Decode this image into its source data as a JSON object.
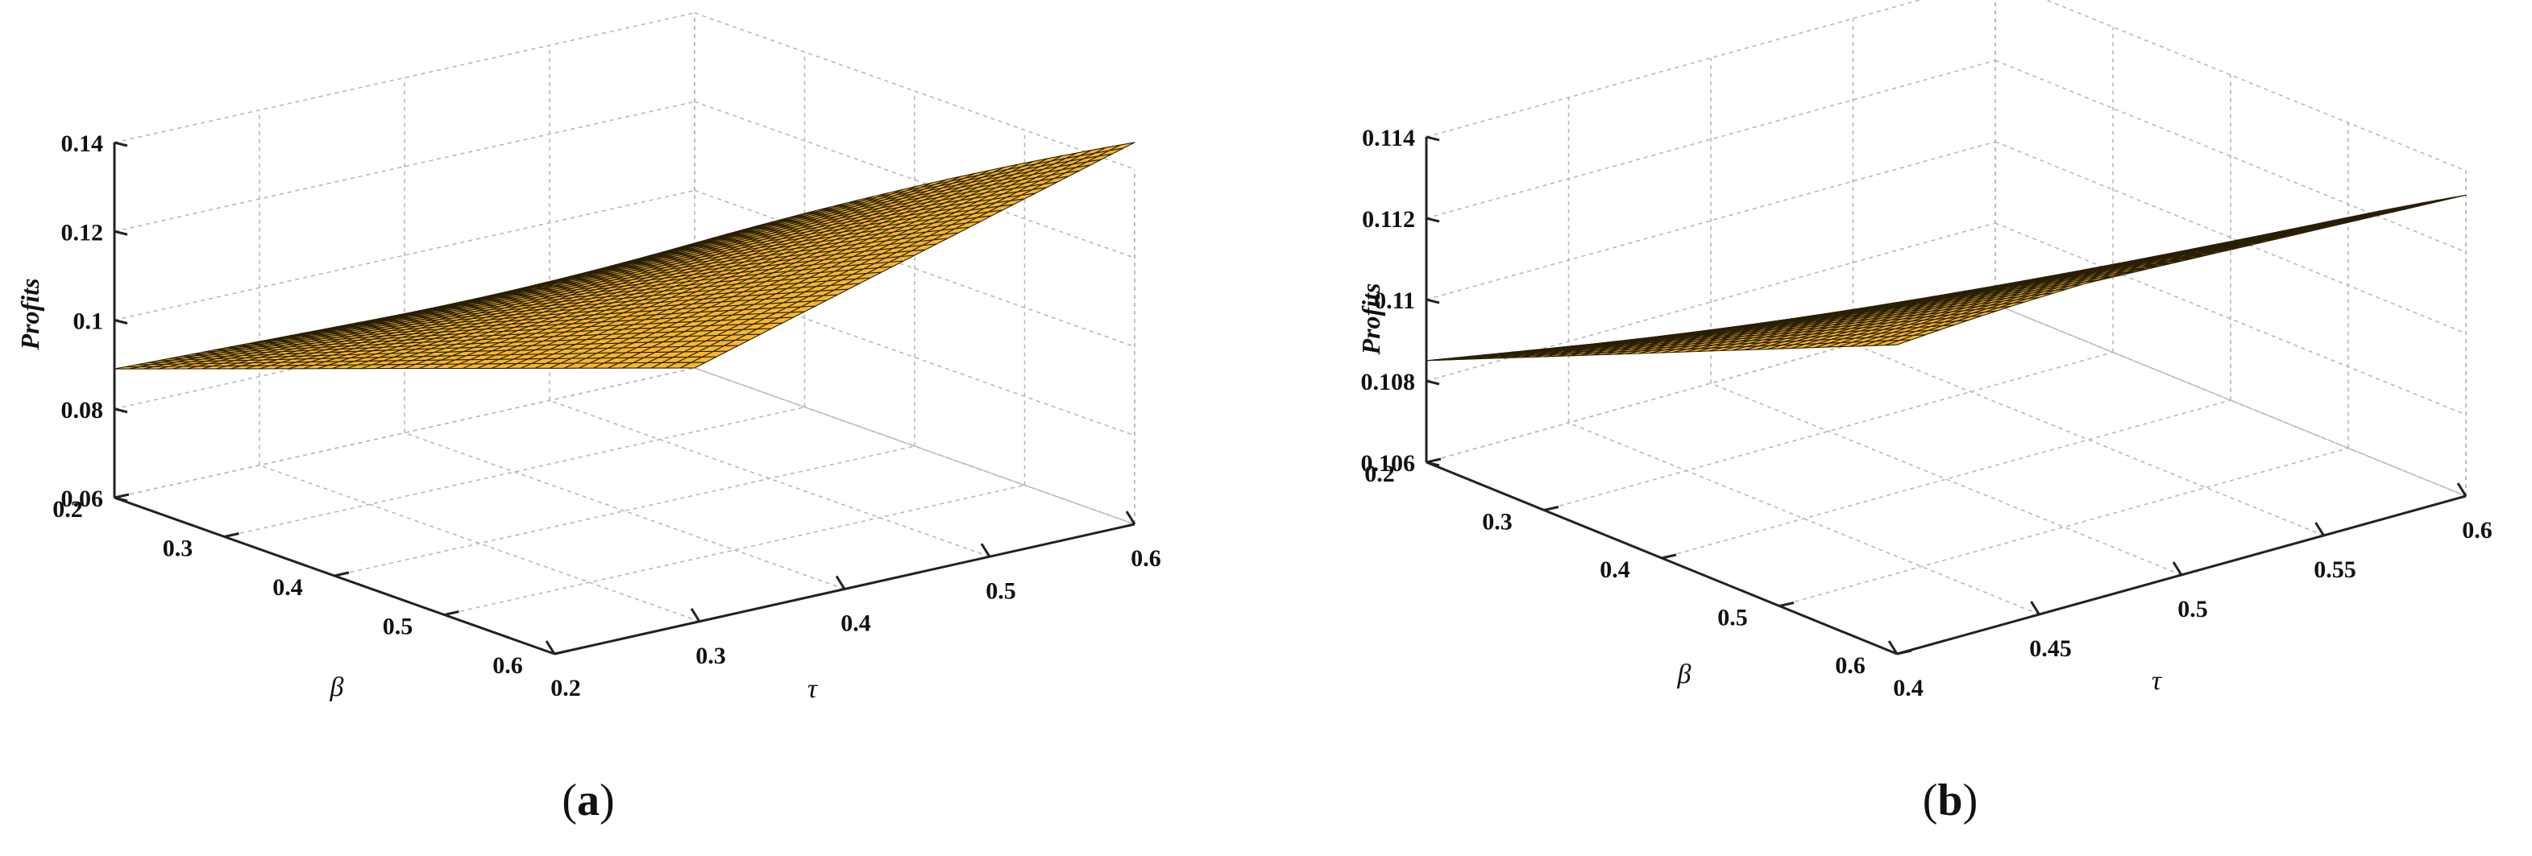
{
  "chart_data": [
    {
      "id": "a",
      "type": "surface",
      "caption": "a",
      "zlabel": "Profits",
      "xlabel": "τ",
      "ylabel": "β",
      "xlim": [
        0.2,
        0.6
      ],
      "ylim": [
        0.2,
        0.6
      ],
      "zlim": [
        0.06,
        0.14
      ],
      "xticks": [
        "0.2",
        "0.3",
        "0.4",
        "0.5",
        "0.6"
      ],
      "yticks": [
        "0.2",
        "0.3",
        "0.4",
        "0.5",
        "0.6"
      ],
      "zticks": [
        "0.06",
        "0.08",
        "0.1",
        "0.12",
        "0.14"
      ],
      "corner_values": {
        "tau_0.2_beta_0.6": 0.143,
        "tau_0.6_beta_0.6": 0.146,
        "tau_0.6_beta_0.2": 0.06,
        "tau_0.2_beta_0.2": 0.089
      },
      "grid": true,
      "color": "#f5b730"
    },
    {
      "id": "b",
      "type": "surface",
      "caption": "b",
      "zlabel": "Profits",
      "xlabel": "τ",
      "ylabel": "β",
      "xlim": [
        0.4,
        0.6
      ],
      "ylim": [
        0.2,
        0.6
      ],
      "zlim": [
        0.106,
        0.114
      ],
      "xticks": [
        "0.4",
        "0.45",
        "0.5",
        "0.55",
        "0.6"
      ],
      "yticks": [
        "0.2",
        "0.3",
        "0.4",
        "0.5",
        "0.6"
      ],
      "zticks": [
        "0.106",
        "0.108",
        "0.11",
        "0.112",
        "0.114"
      ],
      "corner_values": {
        "tau_0.4_beta_0.6": 0.1136,
        "tau_0.6_beta_0.6": 0.1134,
        "tau_0.6_beta_0.2": 0.106,
        "tau_0.4_beta_0.2": 0.1085
      },
      "grid": true,
      "color": "#f5b730"
    }
  ]
}
